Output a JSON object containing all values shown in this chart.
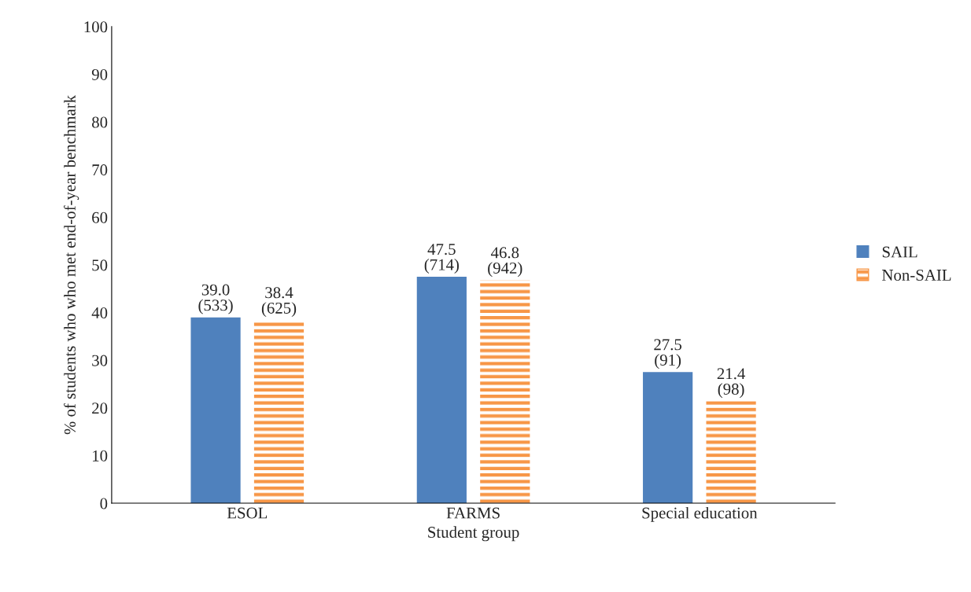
{
  "chart_data": {
    "type": "bar",
    "xlabel": "Student group",
    "ylabel": "% of students who who met end-of-year benchmark",
    "categories": [
      "ESOL",
      "FARMS",
      "Special education"
    ],
    "series": [
      {
        "name": "SAIL",
        "color": "#4f81bd",
        "values": [
          39.0,
          47.5,
          27.5
        ],
        "value_labels": [
          "39.0\n(533)",
          "47.5\n(714)",
          "27.5\n(91)"
        ]
      },
      {
        "name": "Non-SAIL",
        "color": "#f79646",
        "values": [
          38.4,
          46.8,
          21.4
        ],
        "value_labels": [
          "38.4\n(625)",
          "46.8\n(942)",
          "21.4\n(98)"
        ]
      }
    ],
    "ylim": [
      0,
      100
    ],
    "yticks": [
      0,
      10,
      20,
      30,
      40,
      50,
      60,
      70,
      80,
      90,
      100
    ],
    "grid": false,
    "legend": "right"
  }
}
